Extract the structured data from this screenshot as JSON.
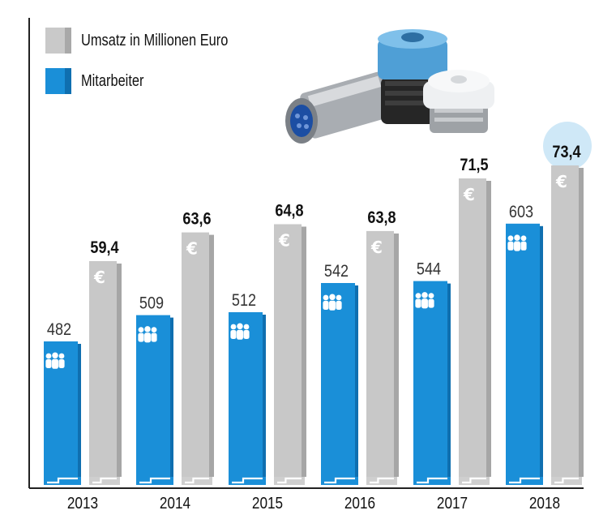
{
  "colors": {
    "revenue": "#c8c8c8",
    "revenue_side": "#a6a6a6",
    "employees": "#1a8fd8",
    "employees_side": "#0f6fb0",
    "highlight": "#cfe8f7",
    "axis": "#222222"
  },
  "legend": {
    "revenue_label": "Umsatz in Millionen Euro",
    "employees_label": "Mitarbeiter"
  },
  "icons": {
    "revenue_bar_icon": "euro-icon",
    "employees_bar_icon": "people-icon",
    "product_image": "connector-products-photo"
  },
  "chart_data": {
    "type": "bar",
    "title": "",
    "xlabel": "",
    "ylabel": "",
    "categories": [
      "2013",
      "2014",
      "2015",
      "2016",
      "2017",
      "2018"
    ],
    "series": [
      {
        "name": "Mitarbeiter",
        "values": [
          482,
          509,
          512,
          542,
          544,
          603
        ],
        "labels": [
          "482",
          "509",
          "512",
          "542",
          "544",
          "603"
        ]
      },
      {
        "name": "Umsatz in Millionen Euro",
        "values": [
          59.4,
          63.6,
          64.8,
          63.8,
          71.5,
          73.4
        ],
        "labels": [
          "59,4",
          "63,6",
          "64,8",
          "63,8",
          "71,5",
          "73,4"
        ]
      }
    ],
    "highlight_category": "2018",
    "legend_position": "top-left",
    "grid": false
  }
}
